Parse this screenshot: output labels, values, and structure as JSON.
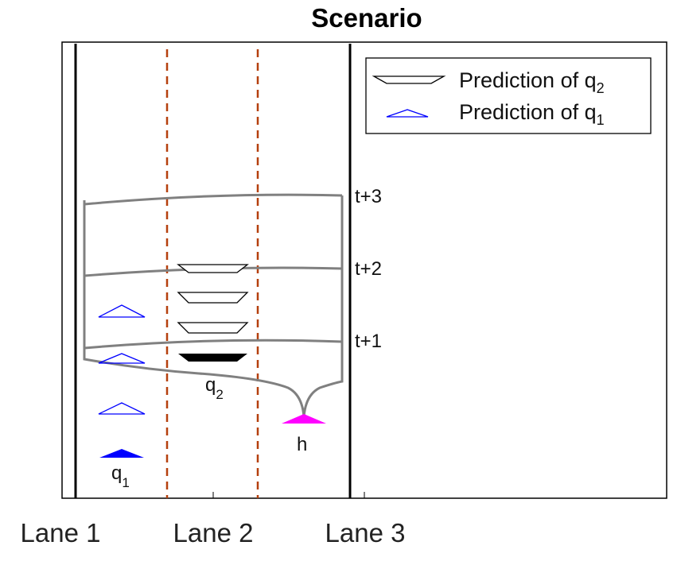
{
  "title": "Scenario",
  "x_tick_labels": [
    "Lane 1",
    "Lane 2",
    "Lane 3"
  ],
  "time_labels": [
    "t+3",
    "t+2",
    "t+1"
  ],
  "vehicle_labels": {
    "q1": "q",
    "q1_sub": "1",
    "q2": "q",
    "q2_sub": "2",
    "h": "h"
  },
  "legend": [
    {
      "text": "Prediction of q",
      "sub": "2",
      "icon": "trapezoid-outline-icon",
      "color": "#000000"
    },
    {
      "text": "Prediction of q",
      "sub": "1",
      "icon": "triangle-outline-icon",
      "color": "#0000ff"
    }
  ],
  "colors": {
    "road_edge": "#000000",
    "lane_divider": "#b5400e",
    "reachable_set": "#808080",
    "q1": "#0000ff",
    "q2": "#000000",
    "h": "#ff00ff"
  }
}
